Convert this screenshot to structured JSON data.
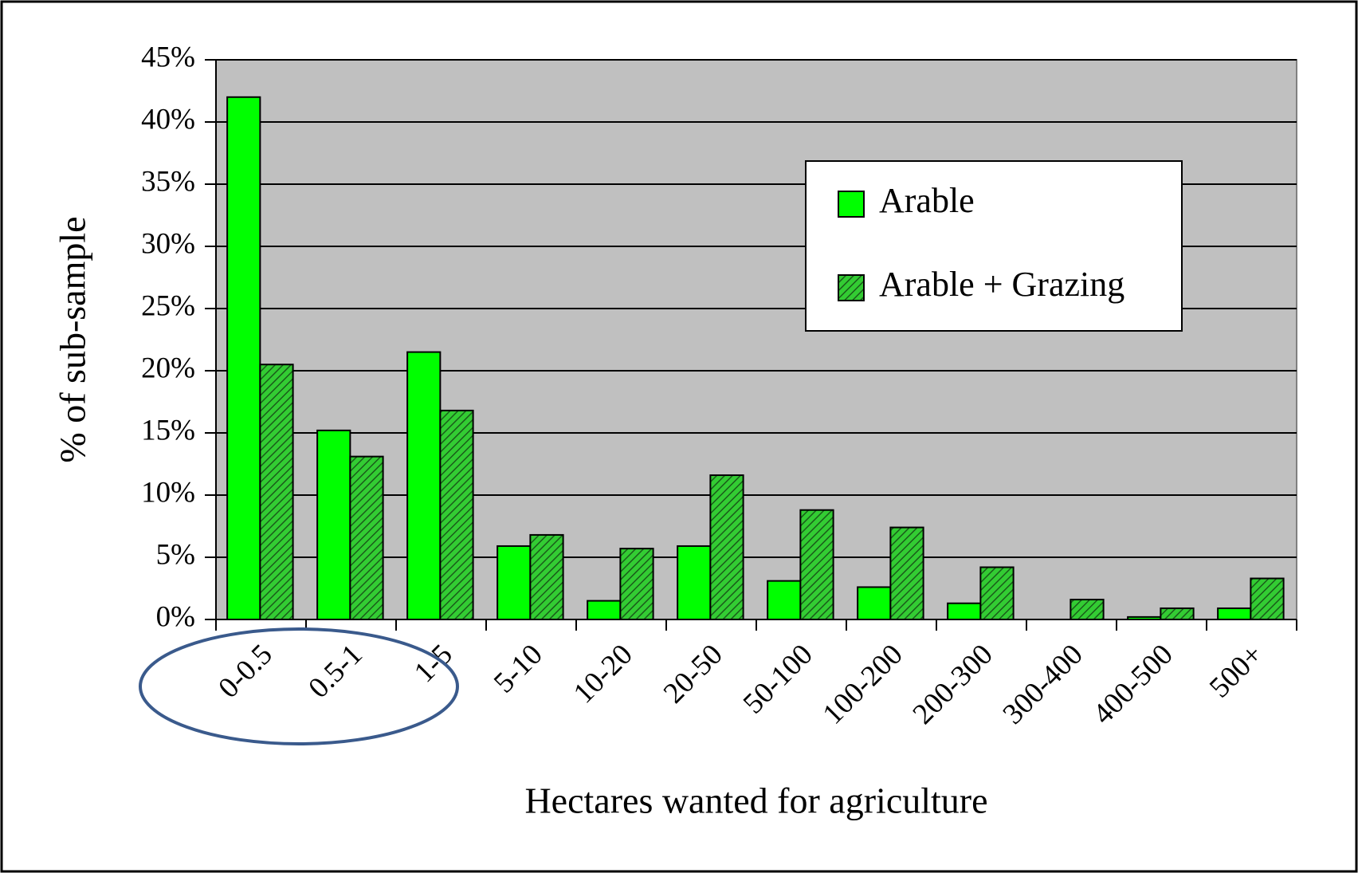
{
  "chart_data": {
    "type": "bar",
    "x_label": "Hectares wanted for agriculture",
    "y_label": "% of sub-sample",
    "categories": [
      "0-0.5",
      "0.5-1",
      "1-5",
      "5-10",
      "10-20",
      "20-50",
      "50-100",
      "100-200",
      "200-300",
      "300-400",
      "400-500",
      "500+"
    ],
    "series": [
      {
        "name": "Arable",
        "color": "#00ff00",
        "values": [
          42,
          15.2,
          21.5,
          5.9,
          1.5,
          5.9,
          3.1,
          2.6,
          1.3,
          0,
          0.2,
          0.9
        ]
      },
      {
        "name": "Arable + Grazing",
        "color": "#33cc33",
        "hatch": true,
        "values": [
          20.5,
          13.1,
          16.8,
          6.8,
          5.7,
          11.6,
          8.8,
          7.4,
          4.2,
          1.6,
          0.9,
          3.3
        ]
      }
    ],
    "ylim": [
      0,
      45
    ],
    "yticks": [
      {
        "value": 0,
        "label": "0%"
      },
      {
        "value": 5,
        "label": "5%"
      },
      {
        "value": 10,
        "label": "10%"
      },
      {
        "value": 15,
        "label": "15%"
      },
      {
        "value": 20,
        "label": "20%"
      },
      {
        "value": 25,
        "label": "25%"
      },
      {
        "value": 30,
        "label": "30%"
      },
      {
        "value": 35,
        "label": "35%"
      },
      {
        "value": 40,
        "label": "40%"
      },
      {
        "value": 45,
        "label": "45%"
      }
    ],
    "grid": true,
    "legend": "upper right"
  }
}
